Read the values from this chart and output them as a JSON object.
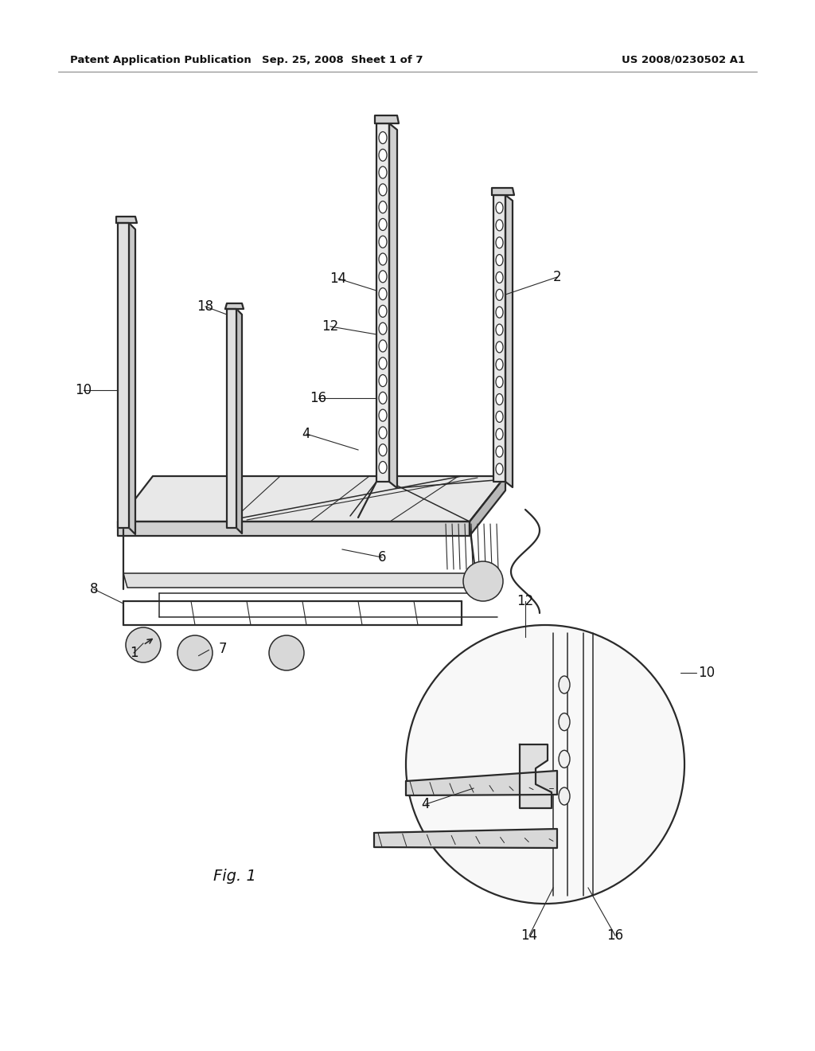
{
  "background_color": "#ffffff",
  "header_left": "Patent Application Publication",
  "header_center": "Sep. 25, 2008  Sheet 1 of 7",
  "header_right": "US 2008/0230502 A1",
  "fig_label": "Fig. 1",
  "line_color": "#2a2a2a",
  "light_gray": "#e8e8e8",
  "mid_gray": "#c8c8c8",
  "dark_gray": "#555555",
  "figsize": [
    10.24,
    13.2
  ],
  "dpi": 100
}
